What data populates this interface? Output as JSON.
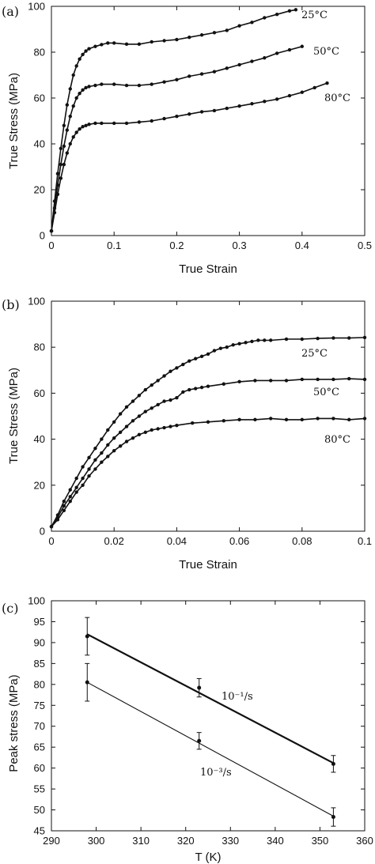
{
  "chart_data": [
    {
      "type": "line",
      "panel_label": "(a)",
      "xlabel": "True Strain",
      "ylabel": "True Stress (MPa)",
      "xlim": [
        0,
        0.5
      ],
      "ylim": [
        0,
        100
      ],
      "xticks": [
        "0",
        "0.1",
        "0.2",
        "0.3",
        "0.4",
        "0.5"
      ],
      "yticks": [
        "0",
        "20",
        "40",
        "60",
        "80",
        "100"
      ],
      "grid": false,
      "series": [
        {
          "name": "25°C",
          "x": [
            0,
            0.005,
            0.01,
            0.015,
            0.02,
            0.025,
            0.03,
            0.035,
            0.04,
            0.045,
            0.05,
            0.055,
            0.06,
            0.07,
            0.08,
            0.09,
            0.1,
            0.12,
            0.14,
            0.16,
            0.18,
            0.2,
            0.22,
            0.24,
            0.26,
            0.28,
            0.3,
            0.32,
            0.34,
            0.36,
            0.38,
            0.39
          ],
          "y": [
            2,
            15,
            27,
            38,
            48,
            57,
            64,
            70,
            74,
            77,
            79,
            80.5,
            81.5,
            82.5,
            83.3,
            84,
            84,
            83.5,
            83.5,
            84.5,
            85,
            85.5,
            86.5,
            87.5,
            88.5,
            89.5,
            91.5,
            93,
            95,
            96.5,
            98,
            98.5
          ]
        },
        {
          "name": "50°C",
          "x": [
            0,
            0.005,
            0.01,
            0.015,
            0.02,
            0.025,
            0.03,
            0.035,
            0.04,
            0.045,
            0.05,
            0.055,
            0.06,
            0.07,
            0.08,
            0.1,
            0.12,
            0.14,
            0.16,
            0.18,
            0.2,
            0.22,
            0.24,
            0.26,
            0.28,
            0.3,
            0.32,
            0.34,
            0.36,
            0.38,
            0.4
          ],
          "y": [
            2,
            12,
            22,
            31,
            39,
            46,
            52,
            56.5,
            60,
            62,
            63.5,
            64.5,
            65,
            65.5,
            66,
            66,
            65.5,
            65.5,
            66,
            67,
            68,
            69.5,
            70.5,
            71.5,
            73,
            74.5,
            76,
            77.5,
            79.5,
            81,
            82.5
          ]
        },
        {
          "name": "80°C",
          "x": [
            0,
            0.005,
            0.01,
            0.015,
            0.02,
            0.025,
            0.03,
            0.035,
            0.04,
            0.045,
            0.05,
            0.055,
            0.06,
            0.07,
            0.08,
            0.1,
            0.12,
            0.14,
            0.16,
            0.18,
            0.2,
            0.22,
            0.24,
            0.26,
            0.28,
            0.3,
            0.32,
            0.34,
            0.36,
            0.38,
            0.4,
            0.42,
            0.44
          ],
          "y": [
            2,
            10,
            18,
            25,
            31,
            36,
            40,
            43,
            45,
            46.5,
            47.5,
            48,
            48.5,
            49,
            49,
            49,
            49,
            49.5,
            50,
            51,
            52,
            53,
            54,
            54.5,
            55.5,
            56.5,
            57.5,
            58.5,
            59.5,
            61,
            62.5,
            64.5,
            66.5
          ]
        }
      ],
      "annotations": [
        "25°C",
        "50°C",
        "80°C"
      ]
    },
    {
      "type": "line",
      "panel_label": "(b)",
      "xlabel": "True Strain",
      "ylabel": "True Stress (MPa)",
      "xlim": [
        0,
        0.1
      ],
      "ylim": [
        0,
        100
      ],
      "xticks": [
        "0",
        "0.02",
        "0.04",
        "0.06",
        "0.08",
        "0.1"
      ],
      "yticks": [
        "0",
        "20",
        "40",
        "60",
        "80",
        "100"
      ],
      "grid": false,
      "series": [
        {
          "name": "25°C",
          "x": [
            0,
            0.002,
            0.004,
            0.006,
            0.008,
            0.01,
            0.012,
            0.014,
            0.016,
            0.018,
            0.02,
            0.022,
            0.024,
            0.026,
            0.028,
            0.03,
            0.032,
            0.034,
            0.036,
            0.038,
            0.04,
            0.042,
            0.044,
            0.046,
            0.048,
            0.05,
            0.052,
            0.054,
            0.056,
            0.058,
            0.06,
            0.062,
            0.064,
            0.066,
            0.068,
            0.07,
            0.075,
            0.08,
            0.085,
            0.09,
            0.095,
            0.1
          ],
          "y": [
            2,
            7,
            13,
            18,
            23,
            28,
            32,
            36,
            40,
            44,
            47.5,
            51,
            54,
            56.5,
            59,
            61.5,
            63.5,
            65.5,
            67.5,
            69.5,
            71,
            72.5,
            74,
            75,
            76,
            77,
            78.5,
            79.5,
            80,
            81,
            81.5,
            82,
            82.5,
            83,
            83,
            83,
            83.5,
            83.5,
            83.8,
            84,
            84,
            84.2
          ]
        },
        {
          "name": "50°C",
          "x": [
            0,
            0.002,
            0.004,
            0.006,
            0.008,
            0.01,
            0.012,
            0.014,
            0.016,
            0.018,
            0.02,
            0.022,
            0.024,
            0.026,
            0.028,
            0.03,
            0.032,
            0.034,
            0.036,
            0.038,
            0.04,
            0.042,
            0.044,
            0.046,
            0.048,
            0.05,
            0.055,
            0.06,
            0.065,
            0.07,
            0.075,
            0.08,
            0.085,
            0.09,
            0.095,
            0.1
          ],
          "y": [
            2,
            6,
            11,
            15,
            19,
            23,
            27,
            31,
            34,
            37.5,
            40.5,
            43,
            45.5,
            48,
            50,
            52,
            53.5,
            55,
            56.5,
            57,
            58,
            60.5,
            61.5,
            62,
            62.5,
            63,
            64,
            65,
            65.5,
            65.5,
            65.5,
            66,
            66,
            66,
            66.3,
            66
          ]
        },
        {
          "name": "80°C",
          "x": [
            0,
            0.002,
            0.004,
            0.006,
            0.008,
            0.01,
            0.012,
            0.014,
            0.016,
            0.018,
            0.02,
            0.022,
            0.024,
            0.026,
            0.028,
            0.03,
            0.032,
            0.034,
            0.036,
            0.038,
            0.04,
            0.045,
            0.05,
            0.055,
            0.06,
            0.065,
            0.07,
            0.075,
            0.08,
            0.085,
            0.09,
            0.095,
            0.1
          ],
          "y": [
            2,
            5,
            9,
            13,
            17,
            20,
            24,
            27,
            30,
            32.5,
            35,
            37,
            39,
            40.5,
            42,
            43,
            44,
            44.5,
            45,
            45.5,
            46,
            47,
            47.5,
            48,
            48.5,
            48.5,
            49,
            48.5,
            48.5,
            49,
            49,
            48.5,
            49
          ]
        }
      ],
      "annotations": [
        "25°C",
        "50°C",
        "80°C"
      ]
    },
    {
      "type": "line",
      "panel_label": "(c)",
      "xlabel": "T (K)",
      "ylabel": "Peak stress (MPa)",
      "xlim": [
        290,
        360
      ],
      "ylim": [
        45,
        100
      ],
      "xticks": [
        "290",
        "300",
        "310",
        "320",
        "330",
        "340",
        "350",
        "360"
      ],
      "yticks": [
        "45",
        "50",
        "55",
        "60",
        "65",
        "70",
        "75",
        "80",
        "85",
        "90",
        "95",
        "100"
      ],
      "grid": false,
      "series": [
        {
          "name": "10⁻¹/s",
          "x": [
            298,
            323,
            353
          ],
          "y": [
            91.5,
            79.2,
            61.0
          ],
          "err": [
            4.5,
            2.2,
            2.0
          ],
          "fit": [
            [
              298,
              92.0
            ],
            [
              353,
              61.2
            ]
          ]
        },
        {
          "name": "10⁻³/s",
          "x": [
            298,
            323,
            353
          ],
          "y": [
            80.5,
            66.5,
            48.3
          ],
          "err": [
            4.5,
            2.0,
            2.2
          ],
          "fit": [
            [
              298,
              80.5
            ],
            [
              353,
              48.5
            ]
          ]
        }
      ],
      "annotations": [
        "10⁻¹/s",
        "10⁻³/s"
      ]
    }
  ]
}
